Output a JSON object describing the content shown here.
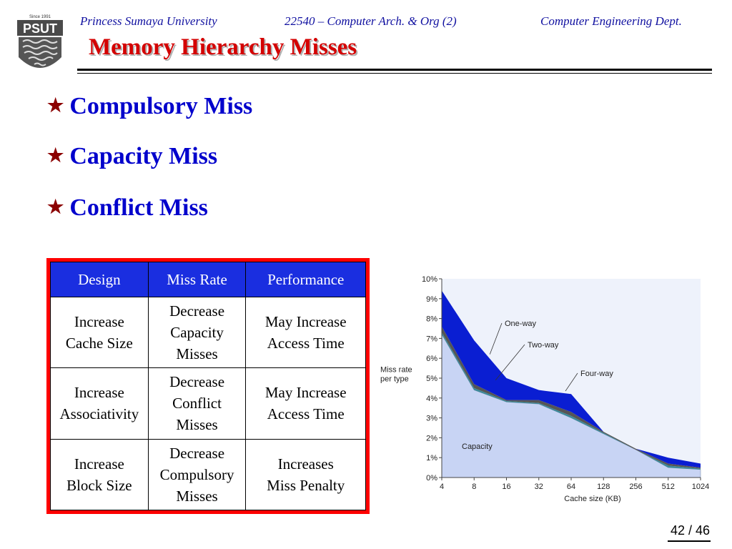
{
  "logo": {
    "since": "Since 1991",
    "name": "PSUT"
  },
  "header": {
    "university": "Princess Sumaya University",
    "course": "22540 – Computer Arch. & Org (2)",
    "dept": "Computer Engineering Dept."
  },
  "title": "Memory Hierarchy Misses",
  "bullets": [
    "Compulsory Miss",
    "Capacity Miss",
    "Conflict Miss"
  ],
  "table": {
    "headers": [
      "Design",
      "Miss Rate",
      "Performance"
    ],
    "rows": [
      {
        "design": [
          "Increase",
          "Cache Size"
        ],
        "miss_rate": [
          "Decrease",
          "Capacity",
          "Misses"
        ],
        "performance": [
          "May Increase",
          "Access Time"
        ]
      },
      {
        "design": [
          "Increase",
          "Associativity"
        ],
        "miss_rate": [
          "Decrease",
          "Conflict",
          "Misses"
        ],
        "performance": [
          "May Increase",
          "Access Time"
        ]
      },
      {
        "design": [
          "Increase",
          "Block Size"
        ],
        "miss_rate": [
          "Decrease",
          "Compulsory",
          "Misses"
        ],
        "performance": [
          "Increases",
          "Miss Penalty"
        ]
      }
    ]
  },
  "chart_data": {
    "type": "area",
    "xlabel": "Cache size (KB)",
    "ylabel": "Miss rate per type",
    "ylabel_lines": [
      "Miss rate",
      "per type"
    ],
    "x": [
      "4",
      "8",
      "16",
      "32",
      "64",
      "128",
      "256",
      "512",
      "1024"
    ],
    "ylim": [
      0,
      10
    ],
    "yticks": [
      "0%",
      "1%",
      "2%",
      "3%",
      "4%",
      "5%",
      "6%",
      "7%",
      "8%",
      "9%",
      "10%"
    ],
    "series": [
      {
        "name": "Capacity",
        "values": [
          7.2,
          4.4,
          3.8,
          3.7,
          3.0,
          2.2,
          1.4,
          0.5,
          0.4
        ]
      },
      {
        "name": "Four-way",
        "values": [
          7.3,
          4.5,
          3.85,
          3.75,
          3.1,
          2.25,
          1.4,
          0.6,
          0.45
        ]
      },
      {
        "name": "Two-way",
        "values": [
          7.6,
          4.7,
          3.9,
          3.9,
          3.3,
          2.3,
          1.45,
          0.7,
          0.5
        ]
      },
      {
        "name": "One-way",
        "values": [
          9.4,
          6.9,
          5.0,
          4.4,
          4.2,
          2.3,
          1.45,
          1.0,
          0.7
        ]
      }
    ],
    "annotations": [
      "One-way",
      "Two-way",
      "Four-way",
      "Capacity"
    ],
    "colors": {
      "one_way": "#0a1ed2",
      "two_way": "#555555",
      "four_way": "#3a8a9a",
      "capacity": "#c8d4f4",
      "plot_bg": "#eef2fb"
    }
  },
  "page": "42 / 46"
}
